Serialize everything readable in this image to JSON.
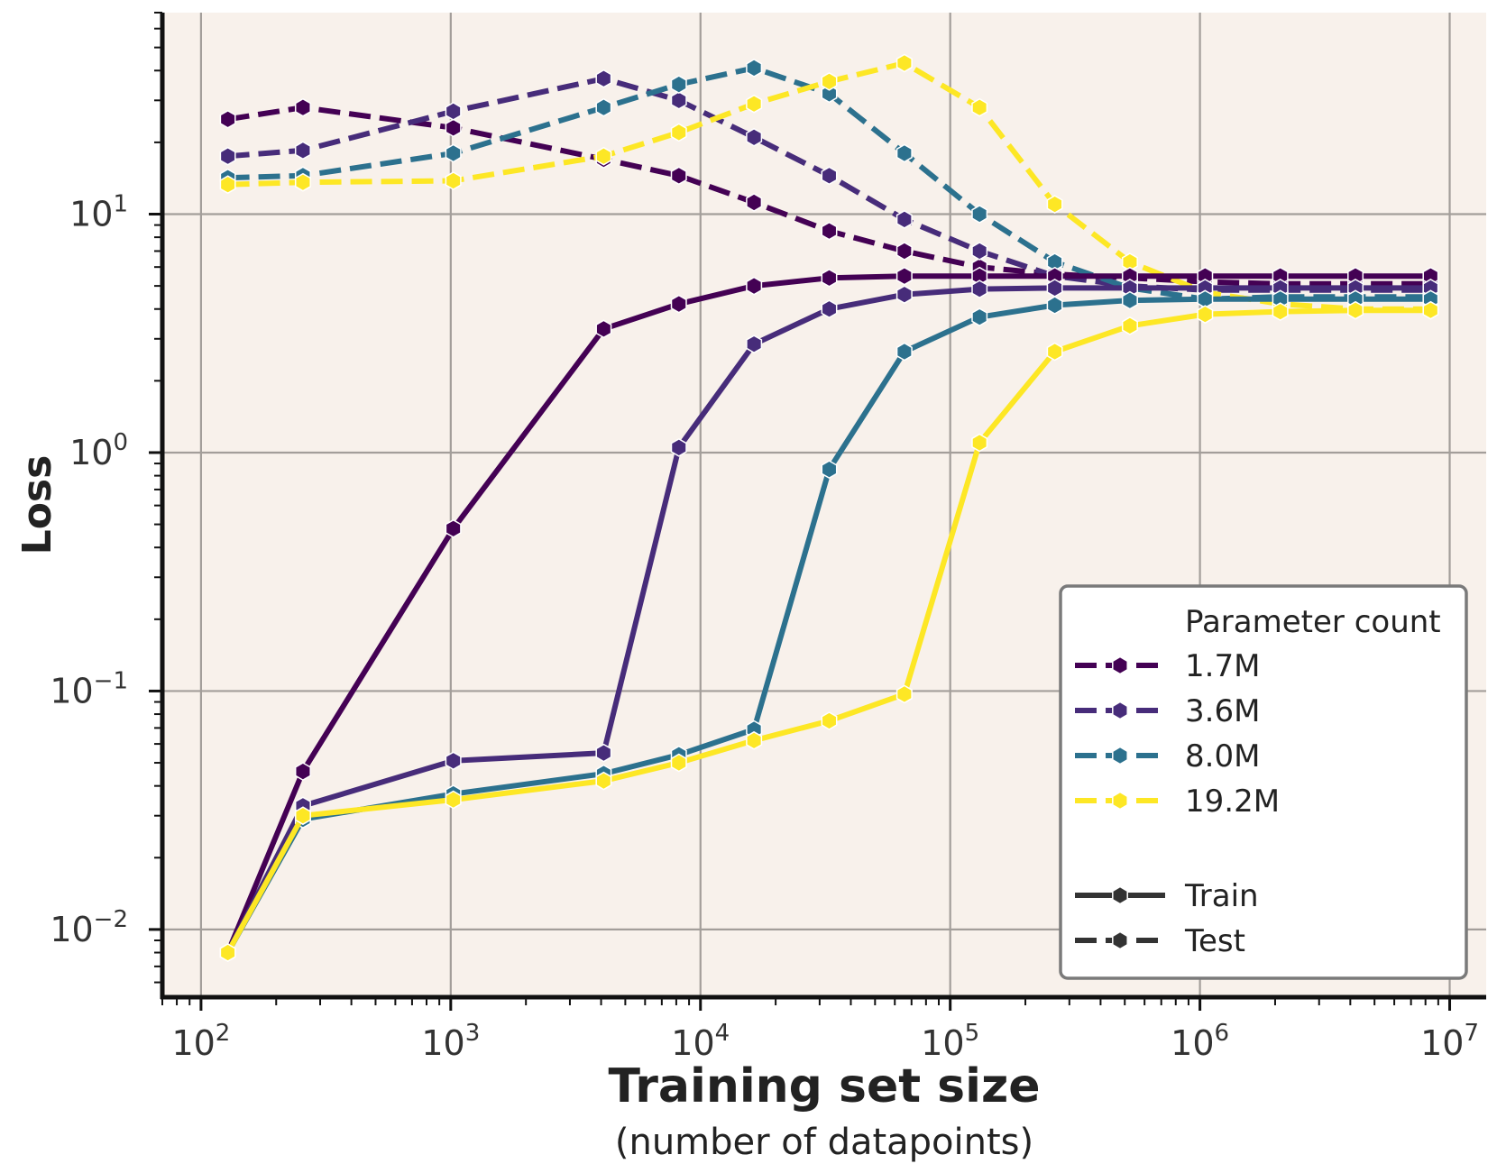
{
  "chart_data": {
    "type": "line",
    "xlabel": "Training set size",
    "xlabel_sub": "(number of datapoints)",
    "ylabel": "Loss",
    "x_scale": "log",
    "y_scale": "log",
    "xlim": [
      70,
      14000000
    ],
    "ylim": [
      0.0052,
      70
    ],
    "grid": true,
    "x_ticks": [
      {
        "base": "10",
        "exp": "2",
        "value": 100
      },
      {
        "base": "10",
        "exp": "3",
        "value": 1000
      },
      {
        "base": "10",
        "exp": "4",
        "value": 10000
      },
      {
        "base": "10",
        "exp": "5",
        "value": 100000
      },
      {
        "base": "10",
        "exp": "6",
        "value": 1000000
      },
      {
        "base": "10",
        "exp": "7",
        "value": 10000000
      }
    ],
    "y_ticks": [
      {
        "base": "10",
        "exp": "−2",
        "value": 0.01
      },
      {
        "base": "10",
        "exp": "−1",
        "value": 0.1
      },
      {
        "base": "10",
        "exp": "0",
        "value": 1
      },
      {
        "base": "10",
        "exp": "1",
        "value": 10
      }
    ],
    "x": [
      128,
      256,
      1024,
      4096,
      8192,
      16384,
      32768,
      65536,
      131072,
      262144,
      524288,
      1048576,
      2097152,
      4194304,
      8388608
    ],
    "series": [
      {
        "name": "1.7M",
        "split": "Train",
        "color": "#440154",
        "values": [
          0.008,
          0.046,
          0.48,
          3.3,
          4.2,
          5.0,
          5.4,
          5.5,
          5.5,
          5.5,
          5.5,
          5.5,
          5.5,
          5.5,
          5.5
        ]
      },
      {
        "name": "1.7M",
        "split": "Test",
        "color": "#440154",
        "values": [
          25,
          28,
          23,
          17,
          14.5,
          11.2,
          8.5,
          7.0,
          6.0,
          5.6,
          5.4,
          5.2,
          5.1,
          5.1,
          5.1
        ]
      },
      {
        "name": "3.6M",
        "split": "Train",
        "color": "#472c7a",
        "values": [
          0.008,
          0.033,
          0.051,
          0.055,
          1.05,
          2.85,
          4.0,
          4.6,
          4.85,
          4.9,
          4.9,
          4.9,
          4.9,
          4.9,
          4.9
        ]
      },
      {
        "name": "3.6M",
        "split": "Test",
        "color": "#472c7a",
        "values": [
          17.5,
          18.5,
          27,
          37,
          30,
          21,
          14.5,
          9.5,
          7.0,
          5.5,
          5.0,
          4.8,
          4.8,
          4.8,
          4.8
        ]
      },
      {
        "name": "8.0M",
        "split": "Train",
        "color": "#2c718e",
        "values": [
          0.008,
          0.029,
          0.037,
          0.045,
          0.054,
          0.069,
          0.85,
          2.65,
          3.7,
          4.15,
          4.35,
          4.4,
          4.4,
          4.4,
          4.4
        ]
      },
      {
        "name": "8.0M",
        "split": "Test",
        "color": "#2c718e",
        "values": [
          14.2,
          14.5,
          18,
          28,
          35,
          41,
          32,
          18,
          10,
          6.3,
          4.9,
          4.4,
          4.5,
          4.5,
          4.5
        ]
      },
      {
        "name": "19.2M",
        "split": "Train",
        "color": "#fde725",
        "values": [
          0.008,
          0.03,
          0.035,
          0.042,
          0.05,
          0.062,
          0.075,
          0.097,
          1.1,
          2.65,
          3.4,
          3.8,
          3.9,
          3.95,
          3.95
        ]
      },
      {
        "name": "19.2M",
        "split": "Test",
        "color": "#fde725",
        "values": [
          13.3,
          13.6,
          13.8,
          17.5,
          22,
          29,
          36,
          43,
          28,
          11,
          6.3,
          4.7,
          4.2,
          4.0,
          4.0
        ]
      }
    ],
    "legend": {
      "title": "Parameter count",
      "position": "lower-right",
      "entries": [
        {
          "label": "1.7M",
          "color": "#440154"
        },
        {
          "label": "3.6M",
          "color": "#472c7a"
        },
        {
          "label": "8.0M",
          "color": "#2c718e"
        },
        {
          "label": "19.2M",
          "color": "#fde725"
        }
      ],
      "style_entries": [
        {
          "label": "Train"
        },
        {
          "label": "Test"
        }
      ]
    },
    "colors": {
      "plot_background": "#f8f1eb",
      "grid": "#a39e9a",
      "axis": "#111111",
      "style_key": "#333333"
    }
  }
}
